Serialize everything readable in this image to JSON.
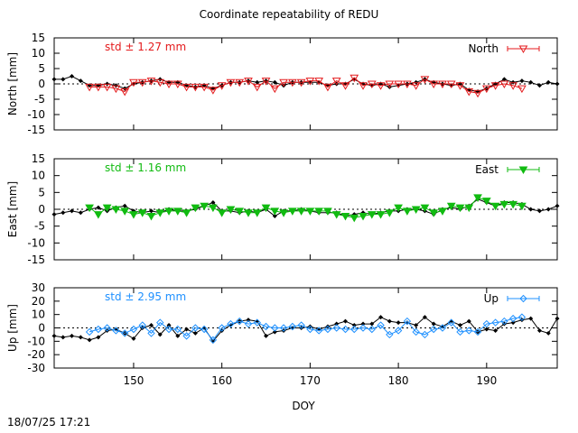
{
  "title": "Coordinate repeatability of REDU",
  "timestamp": "18/07/25 17:21",
  "colors": {
    "North": "#e41a1c",
    "East": "#11bb11",
    "Up": "#1e90ff",
    "ref": "#000000"
  },
  "chart_data": [
    {
      "type": "line",
      "component": "North",
      "ylabel": "North [mm]",
      "ylim": [
        -15,
        15
      ],
      "yticks": [
        -15,
        -10,
        -5,
        0,
        5,
        10,
        15
      ],
      "std_text": "std ± 1.27 mm",
      "legend": "North",
      "legend_position": "top-right",
      "series": [
        {
          "name": "",
          "x": [
            141,
            142,
            143,
            144,
            145,
            146,
            147,
            148,
            149,
            150,
            151,
            152,
            153,
            154,
            155,
            156,
            157,
            158,
            159,
            160,
            161,
            162,
            163,
            164,
            165,
            166,
            167,
            168,
            169,
            170,
            171,
            172,
            173,
            174,
            175,
            176,
            177,
            178,
            179,
            180,
            181,
            182,
            183,
            184,
            185,
            186,
            187,
            188,
            189,
            190,
            191,
            192,
            193,
            194,
            195,
            196,
            197,
            198
          ],
          "values": [
            1.5,
            1.5,
            2.5,
            1,
            -0.5,
            -0.5,
            0,
            -0.5,
            -1.5,
            0,
            0.5,
            1,
            1.5,
            0.5,
            0.5,
            -0.5,
            -1,
            -0.5,
            -1.5,
            -0.5,
            0.5,
            0.5,
            1,
            0.5,
            1,
            0.5,
            -0.5,
            0.5,
            0.5,
            0.5,
            0.5,
            -0.5,
            0,
            0,
            1.5,
            0,
            -0.5,
            0,
            -1,
            -0.5,
            0,
            0.5,
            1.5,
            0.5,
            0,
            -0.5,
            0,
            -2,
            -2.5,
            -1.5,
            0,
            1.5,
            0.5,
            1,
            0.5,
            -0.5,
            0.5,
            0
          ]
        },
        {
          "name": "North",
          "x": [
            145,
            146,
            147,
            148,
            149,
            150,
            151,
            152,
            153,
            154,
            155,
            156,
            157,
            158,
            159,
            160,
            161,
            162,
            163,
            164,
            165,
            166,
            167,
            168,
            169,
            170,
            171,
            172,
            173,
            174,
            175,
            176,
            177,
            178,
            179,
            180,
            181,
            182,
            183,
            184,
            185,
            186,
            187,
            188,
            189,
            190,
            191,
            192,
            193,
            194
          ],
          "values": [
            -1,
            -1,
            -1,
            -1.5,
            -2.5,
            0.5,
            0.5,
            1,
            0.5,
            0,
            0,
            -1,
            -1,
            -1,
            -2,
            -0.5,
            0.5,
            0.5,
            1,
            -1,
            1,
            -1.5,
            0.5,
            0.5,
            0.5,
            1,
            1,
            -1,
            1,
            -0.5,
            2,
            -0.5,
            0,
            -0.5,
            0,
            0,
            0,
            -0.5,
            1.5,
            0,
            0,
            0,
            -0.5,
            -2.5,
            -3,
            -1.5,
            -0.5,
            0,
            -0.5,
            -1.5
          ]
        }
      ]
    },
    {
      "type": "line",
      "component": "East",
      "ylabel": "East [mm]",
      "ylim": [
        -15,
        15
      ],
      "yticks": [
        -15,
        -10,
        -5,
        0,
        5,
        10,
        15
      ],
      "std_text": "std ± 1.16 mm",
      "legend": "East",
      "legend_position": "top-right",
      "series": [
        {
          "name": "",
          "x": [
            141,
            142,
            143,
            144,
            145,
            146,
            147,
            148,
            149,
            150,
            151,
            152,
            153,
            154,
            155,
            156,
            157,
            158,
            159,
            160,
            161,
            162,
            163,
            164,
            165,
            166,
            167,
            168,
            169,
            170,
            171,
            172,
            173,
            174,
            175,
            176,
            177,
            178,
            179,
            180,
            181,
            182,
            183,
            184,
            185,
            186,
            187,
            188,
            189,
            190,
            191,
            192,
            193,
            194,
            195,
            196,
            197,
            198
          ],
          "values": [
            -1.5,
            -1,
            -0.5,
            -1,
            0,
            0.5,
            -0.5,
            0.5,
            1,
            -0.5,
            -1,
            -0.5,
            -1,
            0,
            -0.5,
            -0.5,
            0,
            1,
            2,
            -0.5,
            -0.5,
            -1,
            -0.5,
            -1,
            0,
            -2,
            -0.5,
            -0.5,
            0,
            -0.5,
            -1,
            -1,
            -1,
            -2,
            -1.5,
            -1,
            -1.5,
            -1,
            -0.5,
            -0.5,
            0,
            0,
            -0.5,
            -1.5,
            0,
            0.5,
            0,
            1,
            3,
            2,
            1,
            2,
            2,
            1.5,
            0,
            -0.5,
            0,
            1
          ]
        },
        {
          "name": "East",
          "x": [
            145,
            146,
            147,
            148,
            149,
            150,
            151,
            152,
            153,
            154,
            155,
            156,
            157,
            158,
            159,
            160,
            161,
            162,
            163,
            164,
            165,
            166,
            167,
            168,
            169,
            170,
            171,
            172,
            173,
            174,
            175,
            176,
            177,
            178,
            179,
            180,
            181,
            182,
            183,
            184,
            185,
            186,
            187,
            188,
            189,
            190,
            191,
            192,
            193,
            194
          ],
          "values": [
            0.5,
            -1.5,
            0.5,
            0,
            -0.5,
            -1.5,
            -1,
            -2,
            -1,
            -0.5,
            -0.5,
            -1,
            0.5,
            1,
            0.5,
            -1,
            0,
            -0.5,
            -1,
            -1,
            0.5,
            -0.5,
            -1,
            -0.5,
            -0.5,
            -0.5,
            -0.5,
            -0.5,
            -1.5,
            -2,
            -2.5,
            -2,
            -1.5,
            -1.5,
            -1,
            0.5,
            -0.5,
            0,
            0.5,
            -1,
            -0.5,
            1,
            0.5,
            0.5,
            3.5,
            2.5,
            1,
            1.5,
            1.5,
            1
          ]
        }
      ]
    },
    {
      "type": "line",
      "component": "Up",
      "ylabel": "Up [mm]",
      "ylim": [
        -30,
        30
      ],
      "yticks": [
        -30,
        -20,
        -10,
        0,
        10,
        20,
        30
      ],
      "std_text": "std ± 2.95 mm",
      "legend": "Up",
      "legend_position": "top-right",
      "series": [
        {
          "name": "",
          "x": [
            141,
            142,
            143,
            144,
            145,
            146,
            147,
            148,
            149,
            150,
            151,
            152,
            153,
            154,
            155,
            156,
            157,
            158,
            159,
            160,
            161,
            162,
            163,
            164,
            165,
            166,
            167,
            168,
            169,
            170,
            171,
            172,
            173,
            174,
            175,
            176,
            177,
            178,
            179,
            180,
            181,
            182,
            183,
            184,
            185,
            186,
            187,
            188,
            189,
            190,
            191,
            192,
            193,
            194,
            195,
            196,
            197,
            198
          ],
          "values": [
            -6,
            -7,
            -6,
            -7,
            -9,
            -7,
            -2,
            -1,
            -4,
            -8,
            0,
            2,
            -5,
            2,
            -6,
            -1,
            -4,
            0,
            -10,
            -2,
            2,
            5,
            6,
            5,
            -6,
            -3,
            -2,
            0,
            0,
            1,
            -1,
            1,
            3,
            5,
            2,
            3,
            3,
            8,
            5,
            4,
            4,
            2,
            8,
            3,
            1,
            5,
            2,
            5,
            -3,
            -1,
            -2,
            3,
            4,
            6,
            7,
            -2,
            -4,
            7
          ]
        },
        {
          "name": "Up",
          "x": [
            145,
            146,
            147,
            148,
            149,
            150,
            151,
            152,
            153,
            154,
            155,
            156,
            157,
            158,
            159,
            160,
            161,
            162,
            163,
            164,
            165,
            166,
            167,
            168,
            169,
            170,
            171,
            172,
            173,
            174,
            175,
            176,
            177,
            178,
            179,
            180,
            181,
            182,
            183,
            184,
            185,
            186,
            187,
            188,
            189,
            190,
            191,
            192,
            193,
            194
          ],
          "values": [
            -3,
            -1,
            0,
            -2,
            -4,
            -1,
            2,
            -4,
            4,
            -1,
            -1,
            -6,
            0,
            -1,
            -9,
            0,
            3,
            5,
            3,
            4,
            1,
            0,
            0,
            1,
            2,
            -1,
            -2,
            -1,
            0,
            -1,
            -1,
            0,
            -1,
            2,
            -5,
            -2,
            5,
            -3,
            -5,
            -1,
            0,
            4,
            -3,
            -2,
            -3,
            3,
            4,
            5,
            7,
            8
          ]
        }
      ]
    }
  ],
  "x_axis": {
    "label": "DOY",
    "xlim": [
      141,
      198
    ],
    "ticks": [
      150,
      160,
      170,
      180,
      190
    ]
  }
}
